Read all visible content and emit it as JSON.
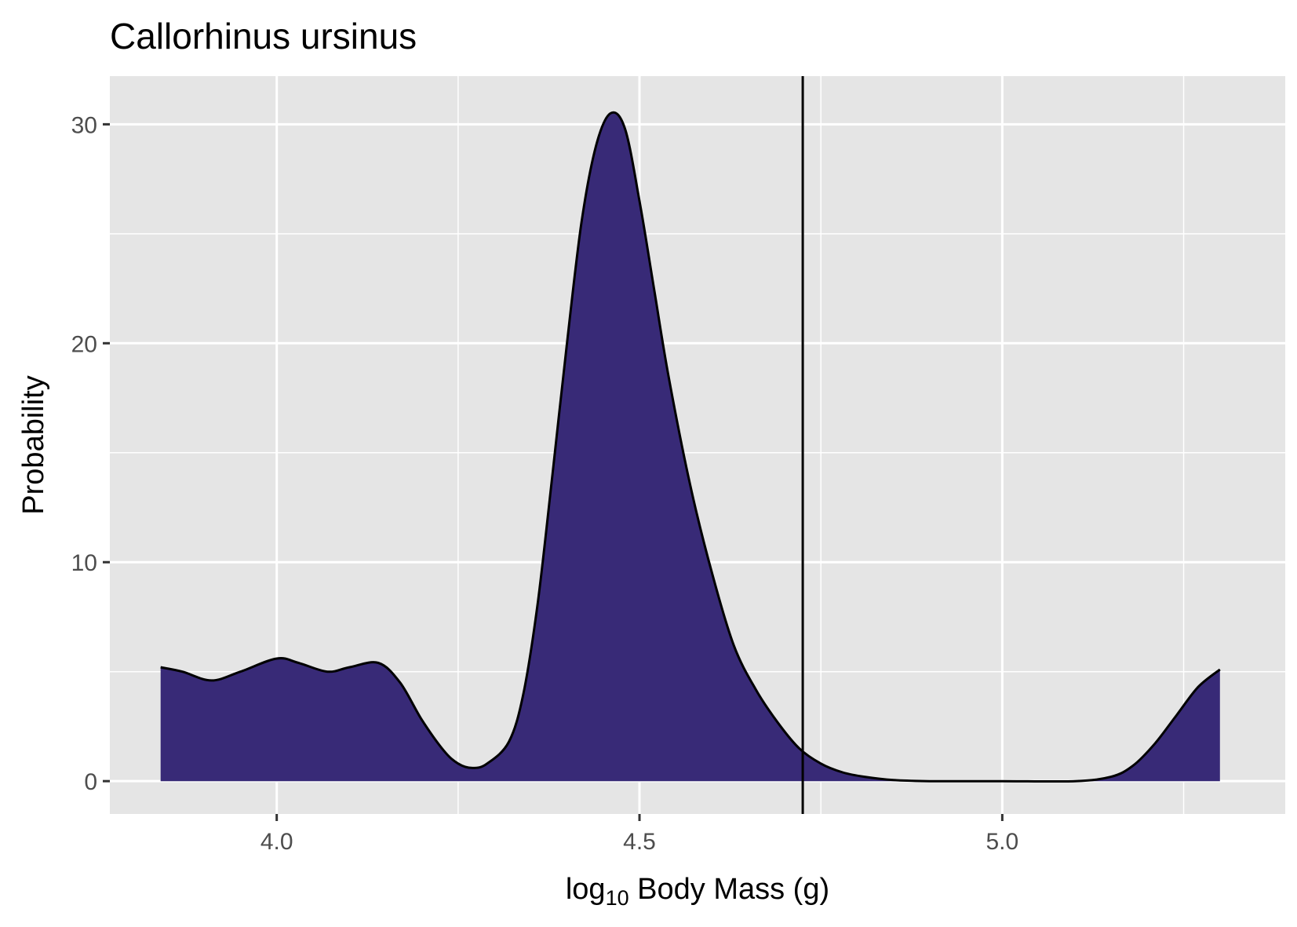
{
  "chart_data": {
    "type": "area",
    "title": "Callorhinus ursinus",
    "xlabel": {
      "prefix": "log",
      "subscript": "10",
      "suffix": " Body Mass (g)"
    },
    "ylabel": "Probability",
    "xlim": [
      3.77,
      5.39
    ],
    "ylim": [
      -1.5,
      32.2
    ],
    "x_ticks": [
      4.0,
      4.5,
      5.0
    ],
    "x_tick_labels": [
      "4.0",
      "4.5",
      "5.0"
    ],
    "y_ticks": [
      0,
      10,
      20,
      30
    ],
    "y_tick_labels": [
      "0",
      "10",
      "20",
      "30"
    ],
    "x_minor_ticks": [
      4.25,
      4.75,
      5.25
    ],
    "y_minor_ticks": [
      5,
      15,
      25
    ],
    "grid": true,
    "reference_line_x": 4.725,
    "colors": {
      "panel_background": "#e5e5e5",
      "grid": "#ffffff",
      "fill": "#382a77",
      "outline": "#000000",
      "reference_line": "#000000"
    },
    "series": [
      {
        "x": [
          3.84,
          3.87,
          3.91,
          3.95,
          4.0,
          4.03,
          4.07,
          4.1,
          4.14,
          4.17,
          4.2,
          4.23,
          4.25,
          4.27,
          4.29,
          4.32,
          4.34,
          4.36,
          4.38,
          4.4,
          4.42,
          4.44,
          4.46,
          4.48,
          4.5,
          4.52,
          4.54,
          4.57,
          4.6,
          4.63,
          4.66,
          4.69,
          4.72,
          4.75,
          4.78,
          4.81,
          4.85,
          4.9,
          5.0,
          5.1,
          5.15,
          5.18,
          5.21,
          5.24,
          5.27,
          5.3
        ],
        "y": [
          5.2,
          5.0,
          4.6,
          5.0,
          5.6,
          5.4,
          5.0,
          5.2,
          5.4,
          4.5,
          2.8,
          1.4,
          0.8,
          0.6,
          0.8,
          1.8,
          4.0,
          8.2,
          14.0,
          20.0,
          25.5,
          29.0,
          30.5,
          29.8,
          26.5,
          22.5,
          18.5,
          13.5,
          9.5,
          6.2,
          4.2,
          2.7,
          1.5,
          0.8,
          0.4,
          0.2,
          0.05,
          0.0,
          0.0,
          0.0,
          0.2,
          0.7,
          1.7,
          3.0,
          4.3,
          5.1
        ]
      }
    ]
  }
}
